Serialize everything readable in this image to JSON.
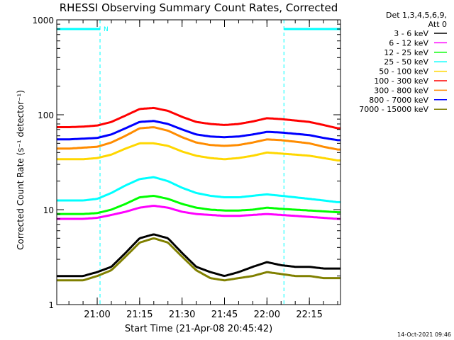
{
  "chart_data": {
    "type": "line",
    "title": "RHESSI Observing Summary Count Rates, Corrected",
    "xlabel": "Start Time (21-Apr-08 20:45:42)",
    "ylabel": "Corrected Count Rate (s⁻¹ detector⁻¹)",
    "y_scale": "log",
    "ylim": [
      1,
      1000
    ],
    "xlim": [
      "20:45:42",
      "22:26:00"
    ],
    "x_ticks": [
      "21:00",
      "21:15",
      "21:30",
      "21:45",
      "22:00",
      "22:15"
    ],
    "y_ticks": [
      "1",
      "10",
      "100",
      "1000"
    ],
    "legend_header": [
      "Det 1,3,4,5,6,9,",
      "Att 0"
    ],
    "legend_position": "top-right, outside plot",
    "timestamp": "14-Oct-2021 09:46",
    "night_marker_label": "N",
    "x": [
      "20:45",
      "20:50",
      "20:55",
      "21:00",
      "21:05",
      "21:10",
      "21:15",
      "21:20",
      "21:25",
      "21:30",
      "21:35",
      "21:40",
      "21:45",
      "21:50",
      "21:55",
      "22:00",
      "22:05",
      "22:10",
      "22:15",
      "22:20",
      "22:25"
    ],
    "series": [
      {
        "name": "3 - 6 keV",
        "color": "#000000",
        "values": [
          2.0,
          2.0,
          2.0,
          2.2,
          2.5,
          3.5,
          5.0,
          5.5,
          5.0,
          3.5,
          2.5,
          2.2,
          2.0,
          2.2,
          2.5,
          2.8,
          2.6,
          2.5,
          2.5,
          2.4,
          2.4
        ]
      },
      {
        "name": "6 - 12 keV",
        "color": "#ff00ff",
        "values": [
          8.0,
          8.0,
          8.0,
          8.2,
          8.8,
          9.5,
          10.5,
          11.0,
          10.5,
          9.5,
          9.0,
          8.8,
          8.6,
          8.6,
          8.8,
          9.0,
          8.8,
          8.6,
          8.4,
          8.2,
          8.0
        ]
      },
      {
        "name": "12 - 25 keV",
        "color": "#00ff00",
        "values": [
          9.0,
          9.0,
          9.0,
          9.2,
          10.0,
          11.5,
          13.5,
          14.0,
          13.0,
          11.5,
          10.5,
          10.0,
          9.8,
          9.8,
          10.0,
          10.5,
          10.2,
          10.0,
          9.8,
          9.6,
          9.4
        ]
      },
      {
        "name": "25 - 50 keV",
        "color": "#00ffff",
        "values": [
          12.5,
          12.5,
          12.5,
          13.0,
          15.0,
          18.0,
          21.0,
          22.0,
          20.0,
          17.0,
          15.0,
          14.0,
          13.5,
          13.5,
          14.0,
          14.5,
          14.0,
          13.5,
          13.0,
          12.5,
          12.0
        ]
      },
      {
        "name": "50 - 100 keV",
        "color": "#ffd700",
        "values": [
          34,
          34,
          34,
          35,
          38,
          44,
          50,
          50,
          47,
          41,
          37,
          35,
          34,
          35,
          37,
          40,
          39,
          38,
          37,
          35,
          33
        ]
      },
      {
        "name": "100 - 300 keV",
        "color": "#ff0000",
        "values": [
          74,
          74,
          75,
          77,
          84,
          98,
          115,
          118,
          110,
          95,
          84,
          80,
          78,
          80,
          85,
          92,
          90,
          87,
          84,
          78,
          72
        ]
      },
      {
        "name": "300 - 800 keV",
        "color": "#ff8c00",
        "values": [
          44,
          44,
          45,
          46,
          51,
          60,
          72,
          74,
          68,
          58,
          51,
          48,
          47,
          48,
          51,
          55,
          54,
          52,
          50,
          46,
          43
        ]
      },
      {
        "name": "800 - 7000 keV",
        "color": "#0000ff",
        "values": [
          55,
          55,
          56,
          57,
          62,
          72,
          84,
          86,
          80,
          70,
          62,
          59,
          58,
          59,
          62,
          66,
          65,
          63,
          61,
          57,
          54
        ]
      },
      {
        "name": "7000 - 15000 keV",
        "color": "#808000",
        "values": [
          1.8,
          1.8,
          1.8,
          2.0,
          2.3,
          3.2,
          4.5,
          5.0,
          4.5,
          3.2,
          2.3,
          1.9,
          1.8,
          1.9,
          2.0,
          2.2,
          2.1,
          2.0,
          2.0,
          1.9,
          1.9
        ]
      }
    ],
    "night_periods": [
      [
        "20:45:42",
        "21:01:00"
      ],
      [
        "22:06:00",
        "22:26:00"
      ]
    ]
  }
}
